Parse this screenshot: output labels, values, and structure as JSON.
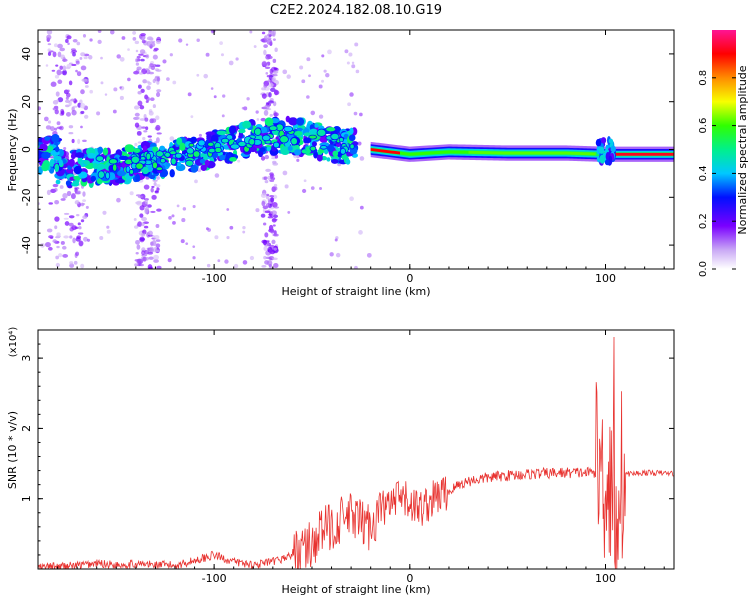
{
  "title": "C2E2.2024.182.08.10.G19",
  "chart_data": [
    {
      "type": "heatmap",
      "xlabel": "Height of straight line (km)",
      "ylabel": "Frequency (Hz)",
      "xlim": [
        -190,
        135
      ],
      "ylim": [
        -50,
        50
      ],
      "xticks": [
        -100,
        0,
        100
      ],
      "yticks": [
        -40,
        -20,
        0,
        20,
        40
      ],
      "colorbar": {
        "label": "Normalized spectral amplitude",
        "range": [
          0,
          1
        ],
        "ticks": [
          0.0,
          0.2,
          0.4,
          0.6,
          0.8
        ]
      },
      "trend": {
        "x": [
          -180,
          -150,
          -120,
          -100,
          -80,
          -60,
          -40,
          -20,
          0,
          20,
          50,
          80,
          100,
          120,
          135
        ],
        "y": [
          -8,
          -7,
          -3,
          0,
          5,
          6,
          2,
          0,
          -2,
          -1,
          -1.5,
          -1.5,
          -2,
          -2,
          -2
        ]
      },
      "grid": false
    },
    {
      "type": "line",
      "xlabel": "Height of straight line (km)",
      "ylabel": "SNR (10 * v/v)",
      "scale_label": "(x10⁴)",
      "xlim": [
        -190,
        135
      ],
      "ylim": [
        0,
        3.4
      ],
      "xticks": [
        -100,
        0,
        100
      ],
      "yticks": [
        1,
        2,
        3
      ],
      "series": [
        {
          "color": "#e8322f",
          "x": [
            -190,
            -170,
            -160,
            -150,
            -140,
            -120,
            -110,
            -100,
            -90,
            -80,
            -70,
            -60,
            -50,
            -45,
            -40,
            -35,
            -30,
            -25,
            -20,
            -15,
            -10,
            -5,
            0,
            5,
            10,
            15,
            20,
            25,
            30,
            40,
            50,
            60,
            70,
            80,
            90,
            95,
            100,
            103,
            105,
            107,
            110,
            120,
            135
          ],
          "y": [
            0.02,
            0.05,
            0.08,
            0.06,
            0.07,
            0.05,
            0.12,
            0.2,
            0.1,
            0.06,
            0.1,
            0.2,
            0.35,
            0.55,
            0.6,
            0.7,
            0.75,
            0.65,
            0.6,
            0.85,
            0.9,
            1.0,
            0.95,
            0.85,
            0.95,
            1.05,
            1.1,
            1.2,
            1.25,
            1.3,
            1.33,
            1.35,
            1.36,
            1.37,
            1.37,
            1.38,
            1.36,
            1.2,
            0.4,
            1.3,
            1.35,
            1.37,
            1.36
          ]
        }
      ]
    }
  ]
}
